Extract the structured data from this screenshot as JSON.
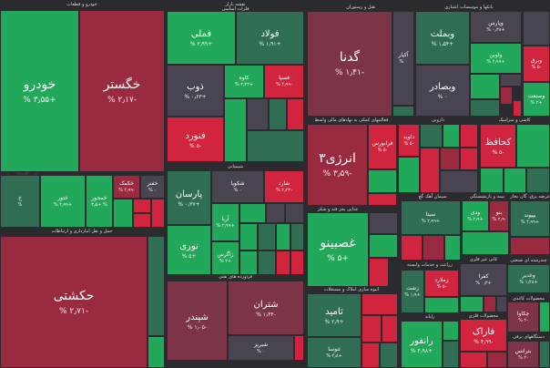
{
  "watermark": "اقتصادآنلاین",
  "top_title": "نقشه بازار",
  "sectors": {
    "auto": "خودرو و قطعات",
    "metals": "فلزات اساسی",
    "hotel": "هتل و رستوران",
    "banks": "بانکها و موسسات اعتباری",
    "chem": "شیمیایی",
    "transport": "حمل و نقل انبارداری و ارتباطات",
    "oil": "فراورده های نفتی",
    "finance": "فعالیتهای کمکی به نهادهای مالی واسط",
    "pharma": "دارویی",
    "tile": "کاشی و سرامیک",
    "food": "غذایی بجز قند و شکر",
    "cement": "سیمان آهک گچ",
    "insurance": "بیمه و بازنشستگی",
    "power": "عرضه برق، گاز، بخار و آب گرم",
    "agri": "زراعت و خدمات وابسته",
    "mineral": "کانی غیر فلزی",
    "multi": "چندرشته ای صنعتی",
    "real": "انبوه سازی املاک و مستغلات",
    "computer": "رایانه",
    "metalprod": "محصولات فلزی",
    "paper": "محصولات کاغذی",
    "electric": "دستگاههای برقی"
  },
  "tiles": {
    "khodro": {
      "name": "خودرو",
      "change": "+۳٫۵۵ %"
    },
    "khgostar": {
      "name": "خگستر",
      "change": "-۲٫۱۷ %"
    },
    "fameli": {
      "name": "فملی",
      "change": "+۳٫۹۹ %"
    },
    "foolad": {
      "name": "فولاد",
      "change": "+۱٫۹۱ %"
    },
    "zob": {
      "name": "ذوب",
      "change": "+۰٫۶۳ %"
    },
    "kaveh": {
      "name": "کاوه",
      "change": "+۲٫۲۲ %"
    },
    "fasapa": {
      "name": "فسپا",
      "change": "-۴٫۹۹ %"
    },
    "fanavard": {
      "name": "فنورد",
      "change": "-۵ %"
    },
    "khavar": {
      "name": "خ",
      "change": "%"
    },
    "khtoor": {
      "name": "ختور",
      "change": "+۴٫۹۹ %"
    },
    "khmehvar": {
      "name": "خمحور",
      "change": "% +۳٫۵"
    },
    "khkomak": {
      "name": "خکمک",
      "change": "-۴٫۹۹ %"
    },
    "khfanar": {
      "name": "خفنر",
      "change": "۰ %"
    },
    "hakeshti": {
      "name": "حکشتی",
      "change": "-۲٫۷۱ %"
    },
    "parsan": {
      "name": "پارسان",
      "change": "+۰٫۳۷ %"
    },
    "shekooya": {
      "name": "شکویا",
      "change": "۰ %"
    },
    "sharad": {
      "name": "شارد",
      "change": "-۲٫۲۳ %"
    },
    "noori": {
      "name": "نوری",
      "change": "+۵ %"
    },
    "arya": {
      "name": "آریا",
      "change": "+۴٫۹۹ %"
    },
    "zagros": {
      "name": "زاگرس",
      "change": "+۲ %"
    },
    "shpendar": {
      "name": "شپندر",
      "change": "-۱٫۰۵ %"
    },
    "shtran": {
      "name": "شتران",
      "change": "-۱٫۴۴ %"
    },
    "shabriz": {
      "name": "شبریز",
      "change": "۰ %"
    },
    "gadena": {
      "name": "گدنا",
      "change": "-۱٫۴۱ %"
    },
    "akpar": {
      "name": "آکپار",
      "change": "۰ %"
    },
    "vbmellat": {
      "name": "وبملت",
      "change": "+۱٫۵۴ %"
    },
    "vbsader": {
      "name": "وبصادر",
      "change": "۰ %"
    },
    "vpars": {
      "name": "وپارس",
      "change": "+۰٫۳۸ %"
    },
    "vlobn": {
      "name": "ولوبن",
      "change": "+۴٫۹۹ %"
    },
    "vbargh": {
      "name": "وبرق",
      "change": "-۵ %"
    },
    "vsanat": {
      "name": "وصنعت",
      "change": "+۲ %"
    },
    "energy3": {
      "name": "انرژی۳",
      "change": "-۳٫۵۹ %"
    },
    "farabourse": {
      "name": "فرابورس",
      "change": "-۵ %"
    },
    "dlovid": {
      "name": "دلوید",
      "change": "-۵ %"
    },
    "kehafez": {
      "name": "کحافظ",
      "change": "-۵ %"
    },
    "ghasino": {
      "name": "غصبینو",
      "change": "+۵ %"
    },
    "sita": {
      "name": "سیتا",
      "change": "+۲٫۹۹ %"
    },
    "vdey": {
      "name": "ودی",
      "change": "+۲٫۹ %"
    },
    "bno": {
      "name": "بنو",
      "change": "-۲٫۹ %"
    },
    "bipvand": {
      "name": "بپیوند",
      "change": "+۴٫۹۹ %"
    },
    "zmelard": {
      "name": "زملارد",
      "change": "-۵ %"
    },
    "zshet": {
      "name": "زشت",
      "change": "+۱٫۹ %"
    },
    "kfra": {
      "name": "کفرا",
      "change": "+۰٫۳ %"
    },
    "vghadir": {
      "name": "وغدیر",
      "change": "+۱٫۴۸ %"
    },
    "samid": {
      "name": "ثامید",
      "change": "+۲٫۹ %"
    },
    "sanosa": {
      "name": "ثنوسا",
      "change": "+۴٫۸ %"
    },
    "ranfor": {
      "name": "رانفور",
      "change": "+۴٫۹۸ %"
    },
    "farak": {
      "name": "فاراک",
      "change": "-۴٫۹۹ %"
    },
    "chkava": {
      "name": "چکاوا",
      "change": "-۴ %"
    },
    "btrans": {
      "name": "بترانس",
      "change": "-۲ %"
    }
  }
}
